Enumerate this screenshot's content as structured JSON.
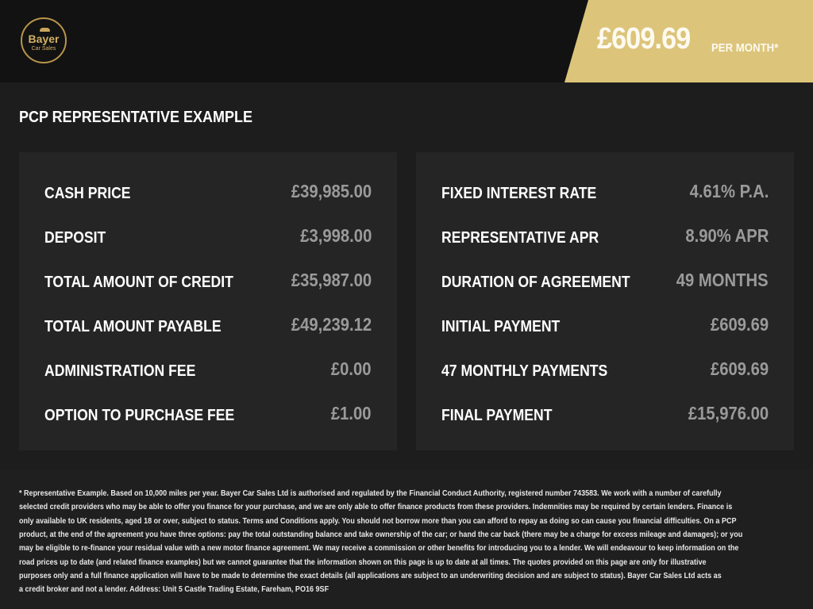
{
  "header": {
    "logo_text": "Bayer",
    "logo_subtext": "Car Sales",
    "price": "£609.69",
    "per_month": "PER MONTH*",
    "banner_color": "#dcc47a"
  },
  "title": "PCP REPRESENTATIVE EXAMPLE",
  "left": [
    {
      "label": "CASH PRICE",
      "value": "£39,985.00"
    },
    {
      "label": "DEPOSIT",
      "value": "£3,998.00"
    },
    {
      "label": "TOTAL AMOUNT OF CREDIT",
      "value": "£35,987.00"
    },
    {
      "label": "TOTAL AMOUNT PAYABLE",
      "value": "£49,239.12"
    },
    {
      "label": "ADMINISTRATION FEE",
      "value": "£0.00"
    },
    {
      "label": "OPTION TO PURCHASE FEE",
      "value": "£1.00"
    }
  ],
  "right": [
    {
      "label": "FIXED INTEREST RATE",
      "value": "4.61% P.A."
    },
    {
      "label": "REPRESENTATIVE APR",
      "value": "8.90% APR"
    },
    {
      "label": "DURATION OF AGREEMENT",
      "value": "49 MONTHS"
    },
    {
      "label": "INITIAL PAYMENT",
      "value": "£609.69"
    },
    {
      "label": "47 MONTHLY PAYMENTS",
      "value": "£609.69"
    },
    {
      "label": "FINAL PAYMENT",
      "value": "£15,976.00"
    }
  ],
  "disclaimer": [
    "* Representative Example. Based on 10,000 miles per year. Bayer Car Sales Ltd is authorised and regulated by the Financial Conduct Authority, registered number 743583. We work with a number of carefully",
    "selected credit providers who may be able to offer you finance for your purchase, and we are only able to offer finance products from these providers. Indemnities may be required by certain lenders. Finance is",
    "only available to UK residents, aged 18 or over, subject to status. Terms and Conditions apply. You should not borrow more than you can afford to repay as doing so can cause you financial difficulties. On a PCP",
    "product, at the end of the agreement you have three options: pay the total outstanding balance and take ownership of the car; or hand the car back (there may be a charge for excess mileage and damages); or you",
    "may be eligible to re-finance your residual value with a new motor finance agreement. We may receive a commission or other benefits for introducing you to a lender. We will endeavour to keep information on the",
    "road prices up to date (and related finance examples) but we cannot guarantee that the information shown on this page is up to date at all times. The quotes provided on this page are only for illustrative",
    "purposes only and a full finance application will have to be made to determine the exact details (all applications are subject to an underwriting decision and are subject to status). Bayer Car Sales Ltd acts as",
    "a credit broker and not a lender. Address: Unit 5 Castle Trading Estate, Fareham, PO16 9SF"
  ]
}
